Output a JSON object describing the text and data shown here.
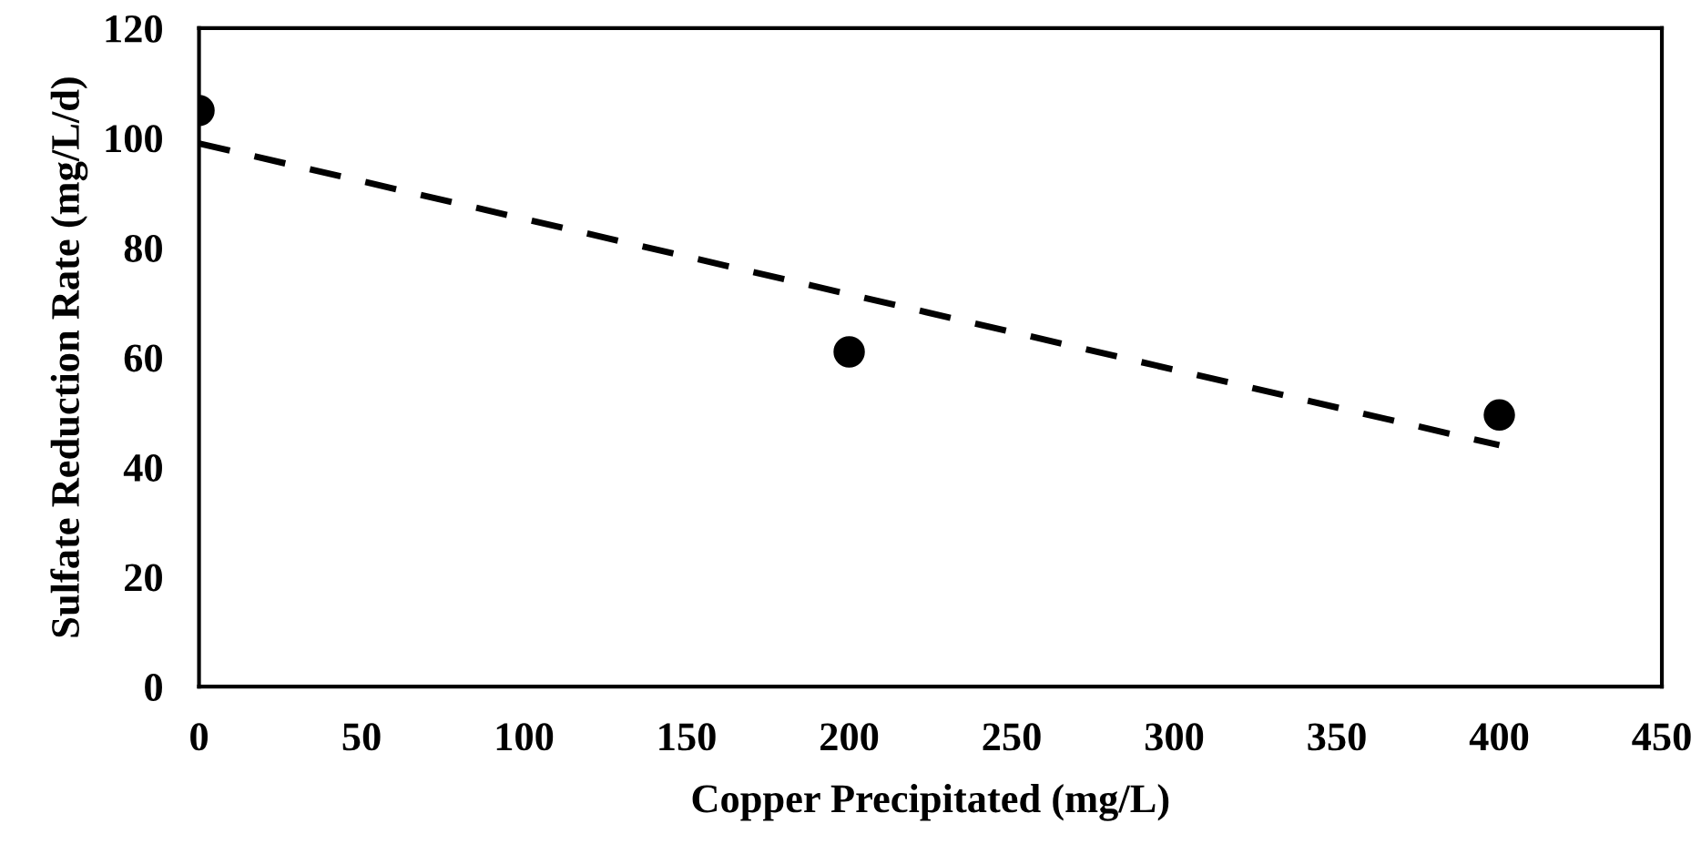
{
  "chart_data": {
    "type": "scatter",
    "xlabel": "Copper Precipitated (mg/L)",
    "ylabel": "Sulfate Reduction Rate (mg/L/d)",
    "x": [
      0,
      200,
      400
    ],
    "series": [
      {
        "color": "#000000",
        "values": [
          105,
          61,
          49.5
        ],
        "marker": "circle"
      },
      {
        "type": "line",
        "color": "#000000",
        "x": [
          0,
          400
        ],
        "values": [
          99,
          44
        ],
        "line_style": "dashed",
        "marker": "none"
      }
    ],
    "xlim": [
      0,
      450
    ],
    "xticks": [
      0,
      50,
      100,
      150,
      200,
      250,
      300,
      350,
      400,
      450
    ],
    "ylim": [
      0,
      120
    ],
    "yticks": [
      0,
      20,
      40,
      60,
      80,
      100,
      120
    ],
    "grid": false,
    "legend": false
  }
}
